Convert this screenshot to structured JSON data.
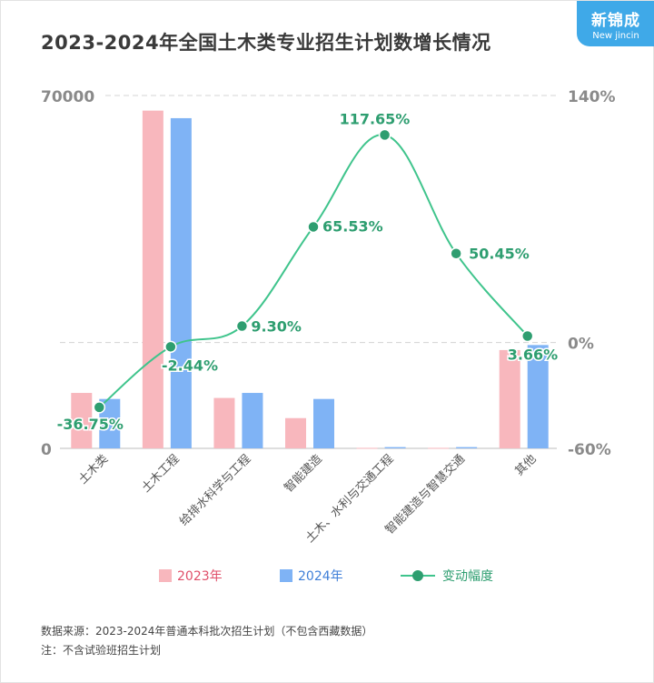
{
  "header": {
    "title": "2023-2024年全国土木类专业招生计划数增长情况",
    "logo_cn": "新锦成",
    "logo_en": "New jincin"
  },
  "chart_data": {
    "type": "bar",
    "categories": [
      "土木类",
      "土木工程",
      "给排水科学与工程",
      "智能建造",
      "土木、水利与交通工程",
      "智能建造与智慧交通",
      "其他"
    ],
    "series": [
      {
        "name": "2023年",
        "type": "bar",
        "color": "#f8b7bd",
        "values": [
          11000,
          67000,
          10000,
          6000,
          100,
          100,
          19500
        ]
      },
      {
        "name": "2024年",
        "type": "bar",
        "color": "#7fb3f5",
        "values": [
          9800,
          65500,
          11000,
          9800,
          250,
          250,
          20500
        ]
      },
      {
        "name": "变动幅度",
        "type": "line",
        "axis": "right",
        "color": "#3fc48c",
        "values": [
          -36.75,
          -2.44,
          9.3,
          65.53,
          117.65,
          50.45,
          3.66
        ],
        "labels": [
          "-36.75%",
          "-2.44%",
          "9.30%",
          "65.53%",
          "117.65%",
          "50.45%",
          "3.66%"
        ]
      }
    ],
    "y_left": {
      "min": 0,
      "max": 70000,
      "ticks": [
        0,
        70000
      ],
      "tick_labels": [
        "0",
        "70000"
      ]
    },
    "y_right": {
      "min": -60,
      "max": 140,
      "ticks": [
        -60,
        0,
        140
      ],
      "tick_labels": [
        "-60%",
        "0%",
        "140%"
      ]
    },
    "grid": true,
    "legend_position": "bottom"
  },
  "legend": {
    "items": [
      {
        "label": "2023年",
        "color": "#f8b7bd",
        "text_color": "#e0506a"
      },
      {
        "label": "2024年",
        "color": "#7fb3f5",
        "text_color": "#3f7fd8"
      },
      {
        "label": "变动幅度",
        "color": "#3fc48c",
        "text_color": "#2e9e70"
      }
    ]
  },
  "notes": {
    "source": "数据来源：2023-2024年普通本科批次招生计划（不包含西藏数据）",
    "note": "注：不含试验班招生计划"
  }
}
